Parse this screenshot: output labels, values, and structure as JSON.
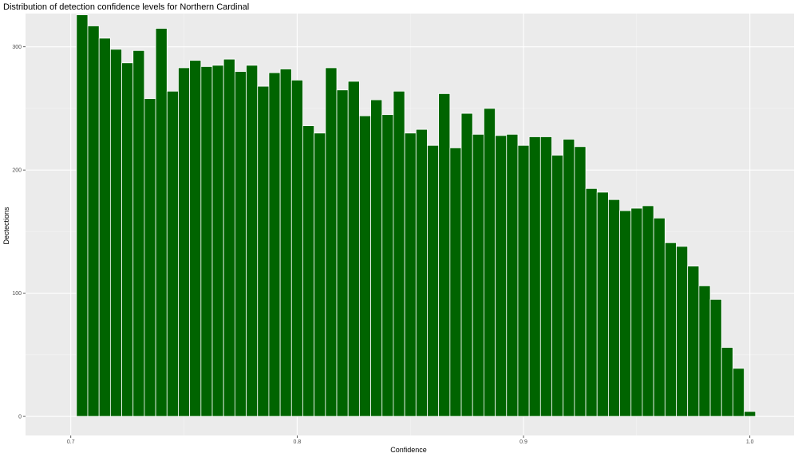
{
  "colors": {
    "panel_background": "#EBEBEB",
    "grid_major": "#FFFFFF",
    "grid_minor": "#F5F5F5",
    "bar_fill": "#006400",
    "bar_outline": "#FFFFFF",
    "text": "#000000",
    "tick_text": "#4D4D4D"
  },
  "chart_data": {
    "type": "bar",
    "title": "Distribution of detection confidence levels for Northern Cardinal",
    "xlabel": "Confidence",
    "ylabel": "Dectections",
    "xlim": [
      0.68,
      1.0195
    ],
    "ylim": [
      -15.5,
      327
    ],
    "grid": true,
    "legend": "none",
    "xticks": [
      0.7,
      0.8,
      0.9,
      1.0
    ],
    "xtick_labels": [
      "0.7",
      "0.8",
      "0.9",
      "1.0"
    ],
    "yticks": [
      0,
      100,
      200,
      300
    ],
    "ytick_labels": [
      "0",
      "100",
      "200",
      "300"
    ],
    "bin_width": 0.005,
    "x": [
      0.705,
      0.71,
      0.715,
      0.72,
      0.725,
      0.73,
      0.735,
      0.74,
      0.745,
      0.75,
      0.755,
      0.76,
      0.765,
      0.77,
      0.775,
      0.78,
      0.785,
      0.79,
      0.795,
      0.8,
      0.805,
      0.81,
      0.815,
      0.82,
      0.825,
      0.83,
      0.835,
      0.84,
      0.845,
      0.85,
      0.855,
      0.86,
      0.865,
      0.87,
      0.875,
      0.88,
      0.885,
      0.89,
      0.895,
      0.9,
      0.905,
      0.91,
      0.915,
      0.92,
      0.925,
      0.93,
      0.935,
      0.94,
      0.945,
      0.95,
      0.955,
      0.96,
      0.965,
      0.97,
      0.975,
      0.98,
      0.985,
      0.99,
      0.995,
      1.0
    ],
    "values": [
      326,
      317,
      307,
      298,
      287,
      297,
      258,
      315,
      264,
      283,
      289,
      284,
      285,
      290,
      280,
      285,
      268,
      279,
      282,
      273,
      236,
      230,
      283,
      265,
      272,
      244,
      257,
      245,
      264,
      230,
      233,
      220,
      262,
      218,
      246,
      229,
      250,
      228,
      229,
      220,
      227,
      227,
      212,
      225,
      219,
      185,
      182,
      176,
      167,
      169,
      171,
      161,
      141,
      138,
      122,
      106,
      95,
      56,
      39,
      4
    ]
  }
}
